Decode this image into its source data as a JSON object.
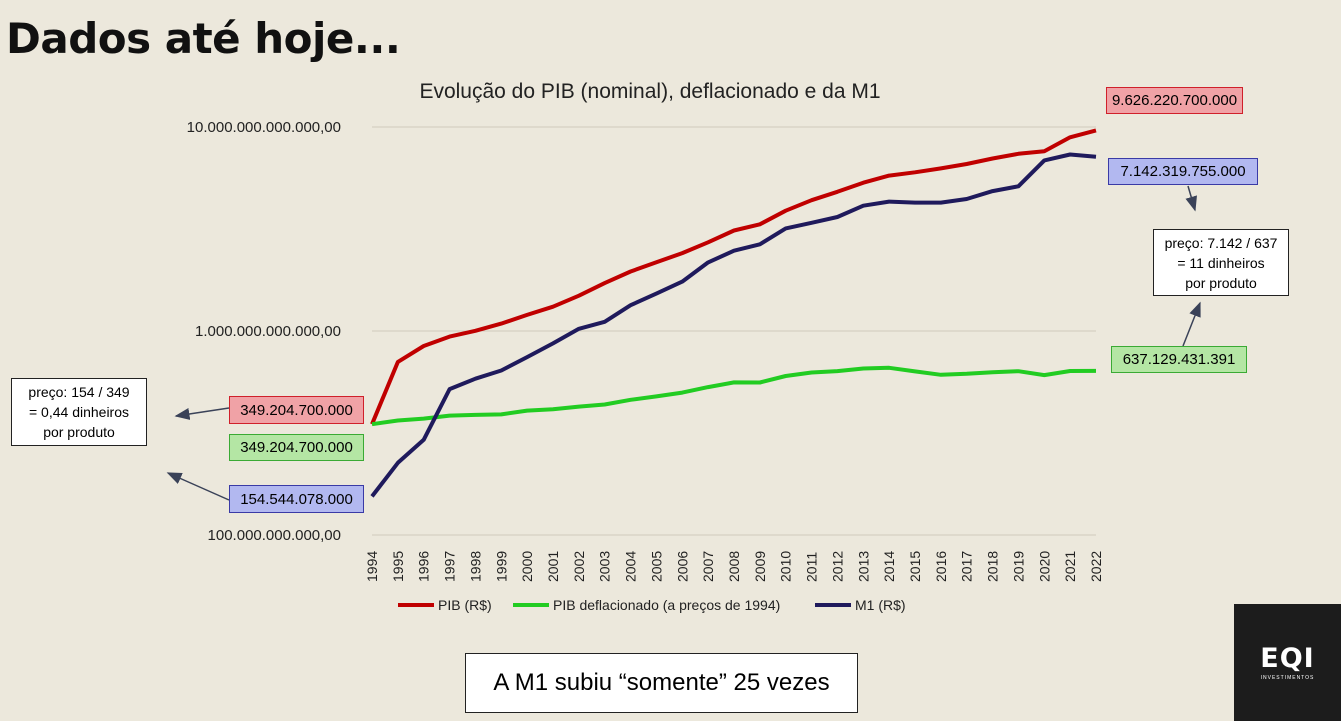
{
  "slide": {
    "title": "Dados até hoje...",
    "conclusion": "A M1 subiu “somente” 25 vezes"
  },
  "logo": {
    "mark": "EQI",
    "sub": "INVESTIMENTOS"
  },
  "chart_data": {
    "type": "line",
    "title": "Evolução do PIB (nominal), deflacionado e da M1",
    "xlabel": "",
    "ylabel": "",
    "y_scale": "log",
    "ylim": [
      100000000000,
      10000000000000
    ],
    "y_ticks": [
      {
        "value": 100000000000,
        "label": "100.000.000.000,00"
      },
      {
        "value": 1000000000000,
        "label": "1.000.000.000.000,00"
      },
      {
        "value": 10000000000000,
        "label": "10.000.000.000.000,00"
      }
    ],
    "grid": true,
    "legend_position": "bottom",
    "x": [
      1994,
      1995,
      1996,
      1997,
      1998,
      1999,
      2000,
      2001,
      2002,
      2003,
      2004,
      2005,
      2006,
      2007,
      2008,
      2009,
      2010,
      2011,
      2012,
      2013,
      2014,
      2015,
      2016,
      2017,
      2018,
      2019,
      2020,
      2021,
      2022
    ],
    "series": [
      {
        "name": "PIB (R$)",
        "color": "#c00000",
        "values": [
          349204700000,
          705640900000,
          843965600000,
          939146600000,
          1001700000000,
          1087700000000,
          1199100000000,
          1315800000000,
          1488800000000,
          1717900000000,
          1957800000000,
          2171700000000,
          2409800000000,
          2720300000000,
          3109800000000,
          3333000000000,
          3885800000000,
          4376400000000,
          4814800000000,
          5331600000000,
          5778900000000,
          5995800000000,
          6269300000000,
          6585500000000,
          7004100000000,
          7389100000000,
          7609600000000,
          8898700000000,
          9626220700000
        ]
      },
      {
        "name": "PIB deflacionado (a preços de 1994)",
        "color": "#22cc22",
        "values": [
          349204700000,
          364000000000,
          372000000000,
          385000000000,
          388000000000,
          390000000000,
          407000000000,
          413000000000,
          426000000000,
          436000000000,
          460000000000,
          478000000000,
          499000000000,
          531000000000,
          560000000000,
          559000000000,
          602000000000,
          626000000000,
          636000000000,
          655000000000,
          660000000000,
          634000000000,
          610000000000,
          617000000000,
          628000000000,
          635000000000,
          608000000000,
          637000000000,
          637129431391
        ]
      },
      {
        "name": "M1 (R$)",
        "color": "#1f1a5c",
        "values": [
          154544078000,
          226000000000,
          293000000000,
          519000000000,
          584000000000,
          640000000000,
          745000000000,
          869000000000,
          1025000000000,
          1110000000000,
          1338000000000,
          1526000000000,
          1747000000000,
          2170000000000,
          2476000000000,
          2662000000000,
          3182000000000,
          3390000000000,
          3622000000000,
          4112000000000,
          4310000000000,
          4260000000000,
          4260000000000,
          4437000000000,
          4850000000000,
          5123000000000,
          6860000000000,
          7328000000000,
          7142319755000
        ]
      }
    ],
    "annotations": {
      "pib_end": "9.626.220.700.000",
      "m1_end": "7.142.319.755.000",
      "defl_end": "637.129.431.391",
      "pib_start": "349.204.700.000",
      "defl_start": "349.204.700.000",
      "m1_start": "154.544.078.000",
      "note_right": [
        "preço: 7.142 / 637",
        "= 11 dinheiros",
        "por produto"
      ],
      "note_left": [
        "preço: 154 / 349",
        "= 0,44 dinheiros",
        "por produto"
      ]
    }
  }
}
